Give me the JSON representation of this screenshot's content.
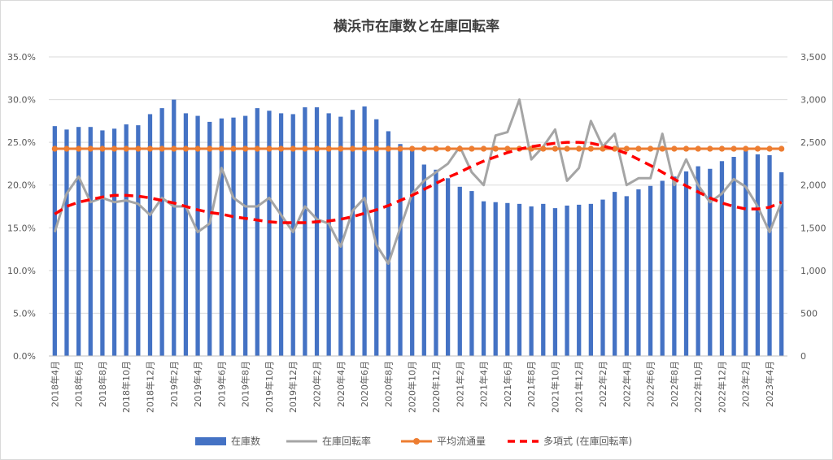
{
  "chart_data": {
    "type": "bar",
    "title": "横浜市在庫数と在庫回転率",
    "categories": [
      "2018年4月",
      "2018年5月",
      "2018年6月",
      "2018年7月",
      "2018年8月",
      "2018年9月",
      "2018年10月",
      "2018年11月",
      "2018年12月",
      "2019年1月",
      "2019年2月",
      "2019年3月",
      "2019年4月",
      "2019年5月",
      "2019年6月",
      "2019年7月",
      "2019年8月",
      "2019年9月",
      "2019年10月",
      "2019年11月",
      "2019年12月",
      "2020年1月",
      "2020年2月",
      "2020年3月",
      "2020年4月",
      "2020年5月",
      "2020年6月",
      "2020年7月",
      "2020年8月",
      "2020年9月",
      "2020年10月",
      "2020年11月",
      "2020年12月",
      "2021年1月",
      "2021年2月",
      "2021年3月",
      "2021年4月",
      "2021年5月",
      "2021年6月",
      "2021年7月",
      "2021年8月",
      "2021年9月",
      "2021年10月",
      "2021年11月",
      "2021年12月",
      "2022年1月",
      "2022年2月",
      "2022年3月",
      "2022年4月",
      "2022年5月",
      "2022年6月",
      "2022年7月",
      "2022年8月",
      "2022年9月",
      "2022年10月",
      "2022年11月",
      "2022年12月",
      "2023年1月",
      "2023年2月",
      "2023年3月",
      "2023年4月",
      "2023年5月"
    ],
    "x_tick_labels_shown": [
      "2018年4月",
      "2018年6月",
      "2018年8月",
      "2018年10月",
      "2018年12月",
      "2019年2月",
      "2019年4月",
      "2019年6月",
      "2019年8月",
      "2019年10月",
      "2019年12月",
      "2020年2月",
      "2020年4月",
      "2020年6月",
      "2020年8月",
      "2020年10月",
      "2020年12月",
      "2021年2月",
      "2021年4月",
      "2021年6月",
      "2021年8月",
      "2021年10月",
      "2021年12月",
      "2022年2月",
      "2022年4月",
      "2022年6月",
      "2022年8月",
      "2022年10月",
      "2022年12月",
      "2023年2月",
      "2023年4月"
    ],
    "y_left": {
      "min": 0,
      "max": 0.35,
      "step": 0.05,
      "tick_labels": [
        "0.0%",
        "5.0%",
        "10.0%",
        "15.0%",
        "20.0%",
        "25.0%",
        "30.0%",
        "35.0%"
      ]
    },
    "y_right": {
      "min": 0,
      "max": 3500,
      "step": 500,
      "tick_labels": [
        "0",
        "500",
        "1,000",
        "1,500",
        "2,000",
        "2,500",
        "3,000",
        "3,500"
      ]
    },
    "grid": "horizontal",
    "legend_position": "bottom",
    "series": [
      {
        "name": "在庫数",
        "type": "bar",
        "axis": "right",
        "color": "#4472C4",
        "values": [
          2690,
          2650,
          2680,
          2680,
          2640,
          2660,
          2710,
          2700,
          2830,
          2900,
          3000,
          2840,
          2810,
          2740,
          2780,
          2790,
          2810,
          2900,
          2870,
          2840,
          2830,
          2910,
          2910,
          2840,
          2800,
          2880,
          2920,
          2770,
          2630,
          2480,
          2400,
          2240,
          2180,
          2080,
          1980,
          1930,
          1810,
          1800,
          1790,
          1780,
          1750,
          1780,
          1730,
          1760,
          1770,
          1780,
          1830,
          1920,
          1870,
          1950,
          1990,
          2050,
          2100,
          2160,
          2220,
          2190,
          2280,
          2330,
          2400,
          2360,
          2350,
          2150
        ]
      },
      {
        "name": "在庫回転率",
        "type": "line",
        "axis": "left",
        "color": "#A5A5A5",
        "values": [
          0.145,
          0.19,
          0.21,
          0.18,
          0.185,
          0.18,
          0.182,
          0.178,
          0.165,
          0.185,
          0.175,
          0.175,
          0.145,
          0.155,
          0.22,
          0.185,
          0.175,
          0.175,
          0.185,
          0.165,
          0.145,
          0.175,
          0.16,
          0.155,
          0.128,
          0.17,
          0.185,
          0.13,
          0.108,
          0.15,
          0.19,
          0.205,
          0.215,
          0.225,
          0.245,
          0.215,
          0.2,
          0.258,
          0.262,
          0.3,
          0.23,
          0.245,
          0.265,
          0.205,
          0.22,
          0.275,
          0.245,
          0.26,
          0.2,
          0.208,
          0.208,
          0.26,
          0.2,
          0.23,
          0.2,
          0.18,
          0.19,
          0.207,
          0.198,
          0.175,
          0.145,
          0.18
        ]
      },
      {
        "name": "平均流通量",
        "type": "line-marker",
        "axis": "left",
        "color": "#ED7D31",
        "constant_value": 0.2425
      },
      {
        "name": "多項式 (在庫回転率)",
        "type": "trendline-dashed",
        "axis": "left",
        "color": "#FF0000",
        "values": [
          0.166,
          0.175,
          0.18,
          0.183,
          0.186,
          0.188,
          0.188,
          0.187,
          0.185,
          0.182,
          0.179,
          0.175,
          0.171,
          0.168,
          0.166,
          0.163,
          0.161,
          0.159,
          0.157,
          0.156,
          0.156,
          0.156,
          0.157,
          0.158,
          0.16,
          0.163,
          0.167,
          0.171,
          0.176,
          0.182,
          0.188,
          0.195,
          0.202,
          0.209,
          0.215,
          0.222,
          0.228,
          0.233,
          0.238,
          0.242,
          0.245,
          0.247,
          0.249,
          0.25,
          0.25,
          0.249,
          0.246,
          0.242,
          0.237,
          0.23,
          0.223,
          0.215,
          0.207,
          0.199,
          0.192,
          0.185,
          0.179,
          0.175,
          0.172,
          0.172,
          0.174,
          0.18
        ]
      }
    ]
  }
}
